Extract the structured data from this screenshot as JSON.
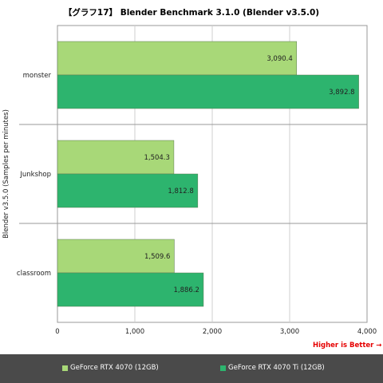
{
  "title": "【グラフ17】 Blender Benchmark 3.1.0 (Blender v3.5.0)",
  "higher_note": "Higher is Better →",
  "chart_data": {
    "type": "bar",
    "orientation": "horizontal",
    "categories": [
      "monster",
      "Junkshop",
      "classroom"
    ],
    "series": [
      {
        "name": "GeForce RTX 4070 (12GB)",
        "values": [
          3090.4,
          1504.3,
          1509.6
        ],
        "labels": [
          "3,090.4",
          "1,504.3",
          "1,509.6"
        ],
        "color": "#a8d878"
      },
      {
        "name": "GeForce RTX 4070 Ti (12GB)",
        "values": [
          3892.8,
          1812.8,
          1886.2
        ],
        "labels": [
          "3,892.8",
          "1,812.8",
          "1,886.2"
        ],
        "color": "#2db46e"
      }
    ],
    "xlim": [
      0,
      4000
    ],
    "xticks": [
      0,
      1000,
      2000,
      3000,
      4000
    ],
    "xtick_labels": [
      "0",
      "1,000",
      "2,000",
      "3,000",
      "4,000"
    ],
    "ylabel": "Blender v3.5.0 (Samples per minutes)",
    "xlabel": "",
    "grid": true,
    "legend_position": "bottom"
  }
}
